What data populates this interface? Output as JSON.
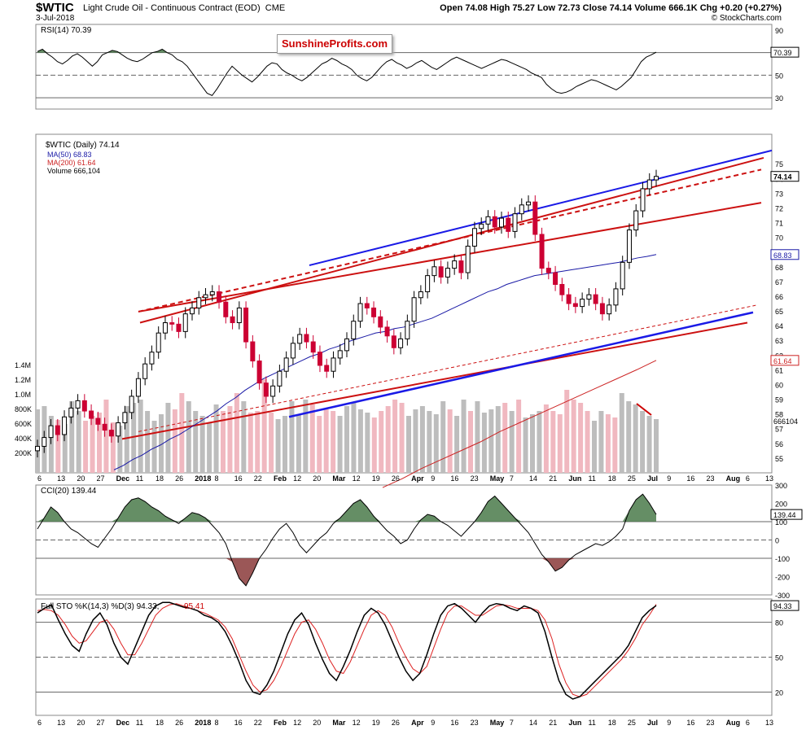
{
  "header": {
    "symbol": "$WTIC",
    "name": "Light Crude Oil - Continuous Contract (EOD)",
    "exchange": "CME",
    "date": "3-Jul-2018",
    "ohlc": "Open 74.08  High 75.27  Low 72.73  Close 74.14  Volume 666.1K  Chg +0.20 (+0.27%)",
    "watermark": "© StockCharts.com",
    "badge": "SunshineProfits.com"
  },
  "colors": {
    "up_candle": "#000000",
    "down_candle": "#cc0033",
    "ma50": "#1a1aa6",
    "ma200": "#cc2222",
    "channel_blue": "#1a1ae6",
    "channel_red": "#cc1111",
    "volume_up": "#bdbdbd",
    "volume_down": "#f0b8c0",
    "indicator_fill_green": "#4a7a4a",
    "indicator_fill_red": "#8a3a3a"
  },
  "chart_data": [
    {
      "type": "line",
      "title": "RSI(14) 70.39",
      "last_value": "70.39",
      "ylim": [
        20,
        95
      ],
      "y_ticks": [
        "90",
        "70",
        "50",
        "30"
      ],
      "reference_lines": [
        70,
        50,
        30
      ],
      "values": [
        71,
        73,
        69,
        66,
        62,
        60,
        63,
        67,
        69,
        66,
        62,
        58,
        62,
        68,
        70,
        72,
        71,
        68,
        65,
        63,
        62,
        64,
        67,
        70,
        71,
        73,
        70,
        68,
        64,
        62,
        58,
        52,
        46,
        40,
        34,
        32,
        38,
        45,
        52,
        58,
        54,
        50,
        47,
        44,
        48,
        53,
        58,
        61,
        60,
        55,
        52,
        50,
        47,
        45,
        48,
        52,
        56,
        60,
        62,
        65,
        63,
        60,
        58,
        55,
        50,
        47,
        45,
        48,
        53,
        58,
        62,
        64,
        61,
        59,
        56,
        58,
        61,
        63,
        60,
        57,
        55,
        58,
        61,
        64,
        66,
        64,
        62,
        60,
        58,
        56,
        58,
        60,
        62,
        64,
        63,
        61,
        59,
        57,
        55,
        52,
        50,
        48,
        42,
        38,
        35,
        34,
        35,
        37,
        40,
        42,
        44,
        46,
        45,
        43,
        41,
        39,
        37,
        40,
        44,
        48,
        55,
        62,
        66,
        68,
        70.39
      ]
    },
    {
      "type": "candlestick",
      "title": "$WTIC (Daily) 74.14",
      "legend": [
        "MA(50) 68.83",
        "MA(200) 61.64",
        "Volume 666,104"
      ],
      "ylim": [
        54,
        77
      ],
      "y_ticks": [
        "75",
        "74",
        "73",
        "72",
        "71",
        "70",
        "69",
        "68",
        "67",
        "66",
        "65",
        "64",
        "63",
        "62",
        "61",
        "60",
        "59",
        "58",
        "57",
        "56",
        "55"
      ],
      "last_labels": {
        "close": "74.14",
        "ma50": "68.83",
        "ma200": "61.64",
        "volume": "666104"
      },
      "volume_axis": [
        "1.4M",
        "1.2M",
        "1.0M",
        "800K",
        "600K",
        "400K",
        "200K"
      ],
      "x_labels": [
        "6",
        "13",
        "20",
        "27",
        "Dec",
        "11",
        "18",
        "26",
        "2018",
        "8",
        "16",
        "22",
        "Feb",
        "12",
        "20",
        "Mar",
        "12",
        "19",
        "26",
        "Apr",
        "9",
        "16",
        "23",
        "May",
        "7",
        "14",
        "21",
        "Jun",
        "11",
        "18",
        "25",
        "Jul",
        "9",
        "16",
        "23",
        "Aug",
        "6",
        "13"
      ],
      "close": [
        55.8,
        56.4,
        57.2,
        56.6,
        57.8,
        58.4,
        58.9,
        58.2,
        57.7,
        57.3,
        56.9,
        56.5,
        57.4,
        58.1,
        59.2,
        60.4,
        61.4,
        62.2,
        63.5,
        64.2,
        64.1,
        63.6,
        64.8,
        65.2,
        65.9,
        66.1,
        66.3,
        65.6,
        64.6,
        64.2,
        65.2,
        62.9,
        61.6,
        60.1,
        59.2,
        59.9,
        60.9,
        61.8,
        62.8,
        63.4,
        62.9,
        62.2,
        61.3,
        60.9,
        61.8,
        62.3,
        63.1,
        64.3,
        65.5,
        65.2,
        64.6,
        63.9,
        63.3,
        62.5,
        63.1,
        64.3,
        65.9,
        66.3,
        67.4,
        68.0,
        67.3,
        67.9,
        68.4,
        67.6,
        69.4,
        70.6,
        70.9,
        71.4,
        70.7,
        71.3,
        70.4,
        71.6,
        72.2,
        72.4,
        70.2,
        67.9,
        67.6,
        66.8,
        66.1,
        65.5,
        65.3,
        65.8,
        66.1,
        65.5,
        64.8,
        65.4,
        66.5,
        68.3,
        70.5,
        71.8,
        73.3,
        73.9,
        74.14
      ],
      "ma50": [
        54.2,
        54.5,
        54.9,
        55.2,
        55.6,
        55.9,
        56.3,
        56.6,
        57.0,
        57.4,
        57.8,
        58.2,
        58.7,
        59.1,
        59.6,
        60.0,
        60.4,
        60.7,
        61.0,
        61.3,
        61.6,
        61.9,
        62.1,
        62.4,
        62.6,
        62.9,
        63.1,
        63.3,
        63.5,
        63.6,
        63.8,
        63.9,
        64.1,
        64.3,
        64.5,
        64.8,
        65.1,
        65.4,
        65.7,
        66.0,
        66.3,
        66.5,
        66.8,
        67.0,
        67.2,
        67.4,
        67.5,
        67.6,
        67.7,
        67.8,
        67.9,
        68.0,
        68.1,
        68.2,
        68.3,
        68.45,
        68.6,
        68.7,
        68.83
      ],
      "ma200": [
        53.0,
        53.6,
        54.3,
        54.9,
        55.5,
        56.1,
        56.8,
        57.4,
        58.0,
        58.6,
        59.2,
        59.8,
        60.4,
        61.0,
        61.64
      ],
      "volume_k": [
        780,
        820,
        700,
        650,
        600,
        880,
        760,
        640,
        700,
        740,
        900,
        620,
        580,
        820,
        860,
        900,
        760,
        640,
        720,
        860,
        780,
        980,
        880,
        760,
        700,
        620,
        840,
        760,
        820,
        980,
        880,
        740,
        760,
        1150,
        740,
        660,
        700,
        880,
        720,
        900,
        840,
        700,
        780,
        760,
        700,
        820,
        860,
        780,
        740,
        680,
        760,
        820,
        900,
        860,
        700,
        780,
        820,
        760,
        720,
        880,
        780,
        700,
        900,
        760,
        880,
        740,
        780,
        820,
        860,
        760,
        900,
        680,
        720,
        760,
        840,
        760,
        720,
        1020,
        900,
        860,
        760,
        640,
        760,
        720,
        680,
        980,
        880,
        840,
        760,
        700,
        660
      ]
    },
    {
      "type": "area",
      "title": "CCI(20) 139.44",
      "last_value": "139.44",
      "ylim": [
        -300,
        300
      ],
      "y_ticks": [
        "300",
        "200",
        "100",
        "0",
        "-100",
        "-200",
        "-300"
      ],
      "values": [
        60,
        120,
        180,
        150,
        100,
        60,
        40,
        10,
        -20,
        -40,
        10,
        60,
        120,
        180,
        220,
        230,
        210,
        180,
        160,
        130,
        110,
        90,
        120,
        150,
        140,
        120,
        80,
        40,
        -20,
        -120,
        -210,
        -250,
        -180,
        -100,
        -50,
        10,
        60,
        90,
        40,
        -30,
        -70,
        -30,
        10,
        40,
        90,
        120,
        160,
        200,
        220,
        180,
        130,
        90,
        50,
        20,
        -20,
        0,
        60,
        110,
        140,
        130,
        100,
        80,
        50,
        20,
        60,
        100,
        150,
        210,
        240,
        200,
        160,
        120,
        80,
        40,
        -20,
        -80,
        -120,
        -170,
        -150,
        -110,
        -80,
        -60,
        -40,
        -20,
        -30,
        -10,
        20,
        60,
        160,
        220,
        250,
        200,
        139.44
      ]
    },
    {
      "type": "line",
      "title": "Full STO %K(14,3) %D(3) 94.33, 95.41",
      "k_label": "Full STO %K(14,3) %D(3) 94.33,",
      "d_label": "95.41",
      "last_value": "94.33",
      "ylim": [
        0,
        100
      ],
      "y_ticks": [
        "80",
        "50",
        "20"
      ],
      "reference_lines": [
        80,
        50,
        20
      ],
      "k": [
        88,
        92,
        95,
        82,
        70,
        60,
        55,
        70,
        82,
        88,
        78,
        62,
        50,
        44,
        58,
        72,
        86,
        94,
        97,
        97,
        95,
        93,
        92,
        90,
        86,
        84,
        80,
        72,
        60,
        46,
        30,
        20,
        18,
        26,
        38,
        54,
        70,
        82,
        88,
        78,
        62,
        48,
        36,
        30,
        42,
        56,
        72,
        86,
        92,
        88,
        78,
        64,
        50,
        38,
        30,
        36,
        52,
        70,
        86,
        94,
        96,
        92,
        86,
        80,
        88,
        94,
        96,
        95,
        92,
        90,
        94,
        92,
        88,
        72,
        50,
        30,
        18,
        14,
        16,
        22,
        28,
        34,
        40,
        46,
        52,
        60,
        72,
        84,
        90,
        94.33
      ],
      "d": [
        90,
        91,
        90,
        86,
        78,
        68,
        62,
        64,
        72,
        80,
        82,
        74,
        62,
        52,
        52,
        62,
        74,
        86,
        92,
        95,
        96,
        94,
        92,
        90,
        88,
        85,
        82,
        76,
        66,
        52,
        38,
        26,
        20,
        22,
        30,
        42,
        56,
        70,
        80,
        82,
        74,
        62,
        48,
        38,
        36,
        46,
        60,
        74,
        86,
        90,
        86,
        76,
        62,
        50,
        40,
        36,
        42,
        58,
        74,
        88,
        94,
        94,
        90,
        86,
        86,
        90,
        94,
        95,
        94,
        92,
        92,
        92,
        90,
        82,
        66,
        44,
        28,
        18,
        16,
        18,
        24,
        30,
        36,
        42,
        48,
        56,
        66,
        78,
        86,
        95.41
      ]
    }
  ]
}
